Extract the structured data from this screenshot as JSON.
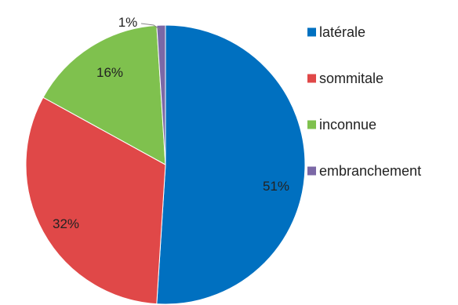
{
  "chart_data": {
    "type": "pie",
    "title": "",
    "slices": [
      {
        "label": "latérale",
        "value": 51,
        "value_label": "51%",
        "color": "#0070C0"
      },
      {
        "label": "sommitale",
        "value": 32,
        "value_label": "32%",
        "color": "#E04848"
      },
      {
        "label": "inconnue",
        "value": 16,
        "value_label": "16%",
        "color": "#7FC14E"
      },
      {
        "label": "embranchement",
        "value": 1,
        "value_label": "1%",
        "color": "#7B68A6"
      }
    ],
    "legend_position": "right"
  }
}
